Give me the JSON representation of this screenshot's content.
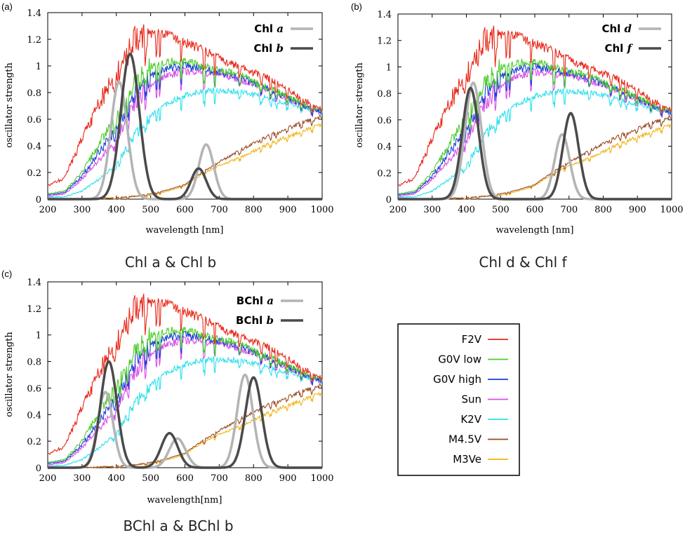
{
  "chart_data": [
    {
      "panel_label": "(a)",
      "caption": "Chl a & Chl b",
      "type": "line",
      "xlabel": "wavelength [nm]",
      "ylabel": "oscillator strength",
      "xlim": [
        200,
        1000
      ],
      "ylim": [
        0,
        1.4
      ],
      "xticks": [
        "200",
        "300",
        "400",
        "500",
        "600",
        "700",
        "800",
        "900",
        "1000"
      ],
      "yticks": [
        "0",
        "0.2",
        "0.4",
        "0.6",
        "0.8",
        "1",
        "1.2",
        "1.4"
      ],
      "legend_position": "top-right",
      "pigments": [
        {
          "name_prefix": "Chl",
          "name_suffix": "a",
          "color": "#b4b4b4",
          "peaks": [
            {
              "x": 408,
              "y": 0.88,
              "w": 24
            },
            {
              "x": 662,
              "y": 0.41,
              "w": 22
            }
          ]
        },
        {
          "name_prefix": "Chl",
          "name_suffix": "b",
          "color": "#4a4a4a",
          "peaks": [
            {
              "x": 440,
              "y": 1.09,
              "w": 27
            },
            {
              "x": 640,
              "y": 0.23,
              "w": 22
            }
          ]
        }
      ]
    },
    {
      "panel_label": "(b)",
      "caption": "Chl d & Chl f",
      "type": "line",
      "xlabel": "wavelength [nm]",
      "ylabel": "oscillator strength",
      "xlim": [
        200,
        1000
      ],
      "ylim": [
        0,
        1.4
      ],
      "xticks": [
        "200",
        "300",
        "400",
        "500",
        "600",
        "700",
        "800",
        "900",
        "1000"
      ],
      "yticks": [
        "0",
        "0.2",
        "0.4",
        "0.6",
        "0.8",
        "1",
        "1.2",
        "1.4"
      ],
      "legend_position": "top-right",
      "pigments": [
        {
          "name_prefix": "Chl",
          "name_suffix": "d",
          "color": "#b4b4b4",
          "peaks": [
            {
              "x": 420,
              "y": 0.88,
              "w": 24
            },
            {
              "x": 680,
              "y": 0.49,
              "w": 22
            }
          ]
        },
        {
          "name_prefix": "Chl",
          "name_suffix": "f",
          "color": "#4a4a4a",
          "peaks": [
            {
              "x": 412,
              "y": 0.84,
              "w": 24
            },
            {
              "x": 705,
              "y": 0.65,
              "w": 23
            }
          ]
        }
      ]
    },
    {
      "panel_label": "(c)",
      "caption": "BChl a & BChl b",
      "type": "line",
      "xlabel": "wavelength[nm]",
      "ylabel": "oscillator strength",
      "xlim": [
        200,
        1000
      ],
      "ylim": [
        0,
        1.4
      ],
      "xticks": [
        "200",
        "300",
        "400",
        "500",
        "600",
        "700",
        "800",
        "900",
        "1000"
      ],
      "yticks": [
        "0",
        "0.2",
        "0.4",
        "0.6",
        "0.8",
        "1",
        "1.2",
        "1.4"
      ],
      "legend_position": "top-right",
      "pigments": [
        {
          "name_prefix": "BChl",
          "name_suffix": "a",
          "color": "#b4b4b4",
          "peaks": [
            {
              "x": 368,
              "y": 0.57,
              "w": 22
            },
            {
              "x": 578,
              "y": 0.22,
              "w": 24
            },
            {
              "x": 775,
              "y": 0.7,
              "w": 23
            }
          ]
        },
        {
          "name_prefix": "BChl",
          "name_suffix": "b",
          "color": "#4a4a4a",
          "peaks": [
            {
              "x": 378,
              "y": 0.8,
              "w": 24
            },
            {
              "x": 555,
              "y": 0.26,
              "w": 24
            },
            {
              "x": 800,
              "y": 0.68,
              "w": 24
            }
          ]
        }
      ]
    }
  ],
  "spectra_legend": [
    {
      "name": "F2V",
      "color": "#e8291a"
    },
    {
      "name": "G0V low",
      "color": "#4ccd2a"
    },
    {
      "name": "G0V high",
      "color": "#1a3fd9"
    },
    {
      "name": "Sun",
      "color": "#d94ee8"
    },
    {
      "name": "K2V",
      "color": "#2ee0ee"
    },
    {
      "name": "M4.5V",
      "color": "#9a4a26"
    },
    {
      "name": "M3Ve",
      "color": "#f0b418"
    }
  ],
  "stellar_spectra": {
    "F2V": [
      [
        200,
        0.1
      ],
      [
        250,
        0.16
      ],
      [
        300,
        0.45
      ],
      [
        350,
        0.72
      ],
      [
        400,
        0.95
      ],
      [
        450,
        1.21
      ],
      [
        500,
        1.24
      ],
      [
        550,
        1.23
      ],
      [
        600,
        1.18
      ],
      [
        650,
        1.12
      ],
      [
        700,
        1.06
      ],
      [
        750,
        1.0
      ],
      [
        800,
        0.95
      ],
      [
        850,
        0.9
      ],
      [
        900,
        0.82
      ],
      [
        950,
        0.74
      ],
      [
        1000,
        0.67
      ]
    ],
    "G0V low": [
      [
        200,
        0.04
      ],
      [
        250,
        0.06
      ],
      [
        300,
        0.2
      ],
      [
        350,
        0.42
      ],
      [
        400,
        0.6
      ],
      [
        450,
        0.86
      ],
      [
        500,
        0.99
      ],
      [
        550,
        1.03
      ],
      [
        600,
        1.04
      ],
      [
        650,
        1.0
      ],
      [
        700,
        0.97
      ],
      [
        750,
        0.94
      ],
      [
        800,
        0.88
      ],
      [
        850,
        0.83
      ],
      [
        900,
        0.77
      ],
      [
        950,
        0.71
      ],
      [
        1000,
        0.66
      ]
    ],
    "G0V high": [
      [
        200,
        0.03
      ],
      [
        250,
        0.05
      ],
      [
        300,
        0.17
      ],
      [
        350,
        0.36
      ],
      [
        400,
        0.52
      ],
      [
        450,
        0.78
      ],
      [
        500,
        0.93
      ],
      [
        550,
        0.98
      ],
      [
        600,
        1.0
      ],
      [
        650,
        0.98
      ],
      [
        700,
        0.95
      ],
      [
        750,
        0.92
      ],
      [
        800,
        0.87
      ],
      [
        850,
        0.82
      ],
      [
        900,
        0.76
      ],
      [
        950,
        0.7
      ],
      [
        1000,
        0.65
      ]
    ],
    "Sun": [
      [
        200,
        0.02
      ],
      [
        250,
        0.04
      ],
      [
        300,
        0.15
      ],
      [
        350,
        0.3
      ],
      [
        400,
        0.45
      ],
      [
        450,
        0.7
      ],
      [
        500,
        0.86
      ],
      [
        550,
        0.93
      ],
      [
        600,
        0.96
      ],
      [
        650,
        0.95
      ],
      [
        700,
        0.94
      ],
      [
        750,
        0.91
      ],
      [
        800,
        0.86
      ],
      [
        850,
        0.81
      ],
      [
        900,
        0.75
      ],
      [
        950,
        0.7
      ],
      [
        1000,
        0.65
      ]
    ],
    "K2V": [
      [
        200,
        0.01
      ],
      [
        250,
        0.02
      ],
      [
        300,
        0.06
      ],
      [
        350,
        0.15
      ],
      [
        400,
        0.25
      ],
      [
        450,
        0.47
      ],
      [
        500,
        0.63
      ],
      [
        550,
        0.72
      ],
      [
        600,
        0.78
      ],
      [
        650,
        0.81
      ],
      [
        700,
        0.82
      ],
      [
        750,
        0.81
      ],
      [
        800,
        0.78
      ],
      [
        850,
        0.75
      ],
      [
        900,
        0.72
      ],
      [
        950,
        0.69
      ],
      [
        1000,
        0.65
      ]
    ],
    "M4.5V": [
      [
        200,
        0.0
      ],
      [
        300,
        0.0
      ],
      [
        400,
        0.01
      ],
      [
        450,
        0.02
      ],
      [
        500,
        0.04
      ],
      [
        550,
        0.07
      ],
      [
        600,
        0.11
      ],
      [
        650,
        0.2
      ],
      [
        700,
        0.28
      ],
      [
        750,
        0.35
      ],
      [
        800,
        0.42
      ],
      [
        850,
        0.48
      ],
      [
        900,
        0.53
      ],
      [
        950,
        0.58
      ],
      [
        1000,
        0.62
      ]
    ],
    "M3Ve": [
      [
        200,
        0.0
      ],
      [
        300,
        0.0
      ],
      [
        400,
        0.01
      ],
      [
        450,
        0.02
      ],
      [
        500,
        0.03
      ],
      [
        550,
        0.06
      ],
      [
        600,
        0.1
      ],
      [
        650,
        0.19
      ],
      [
        700,
        0.25
      ],
      [
        750,
        0.3
      ],
      [
        800,
        0.36
      ],
      [
        850,
        0.42
      ],
      [
        900,
        0.47
      ],
      [
        950,
        0.52
      ],
      [
        1000,
        0.56
      ]
    ]
  }
}
